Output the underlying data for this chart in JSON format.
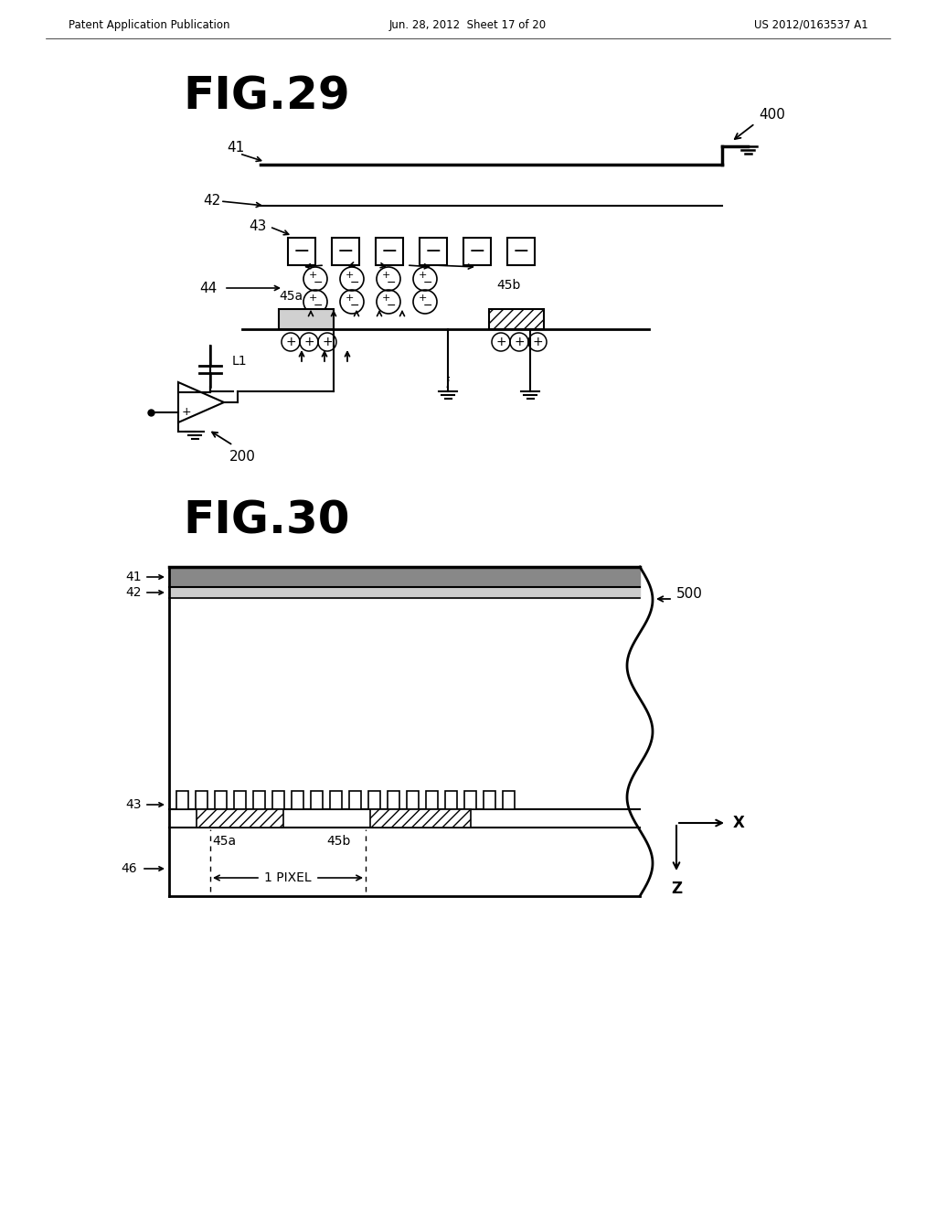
{
  "bg_color": "#ffffff",
  "header_left": "Patent Application Publication",
  "header_mid": "Jun. 28, 2012  Sheet 17 of 20",
  "header_right": "US 2012/0163537 A1"
}
